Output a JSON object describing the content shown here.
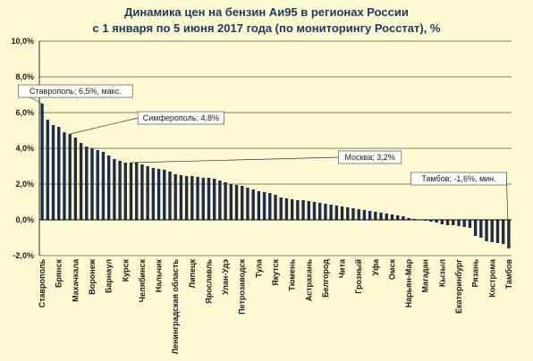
{
  "title_line1": "Динамика цен на бензин Аи95 в регионах России",
  "title_line2": "с 1 января по 5 июня 2017 года (по мониторингу Росстат), %",
  "chart_data": {
    "type": "bar",
    "title": "Динамика цен на бензин Аи95 в регионах России с 1 января по 5 июня 2017 года (по мониторингу Росстат), %",
    "xlabel": "",
    "ylabel": "",
    "ylim": [
      -2.0,
      10.0
    ],
    "yticks": [
      "-2,0%",
      "0,0%",
      "2,0%",
      "4,0%",
      "6,0%",
      "8,0%",
      "10,0%"
    ],
    "grid": true,
    "bar_color": "#1f2d4a",
    "labeled_categories": [
      {
        "label": "Ставрополь",
        "index": 0
      },
      {
        "label": "Брянск",
        "index": 3
      },
      {
        "label": "Махачкала",
        "index": 6
      },
      {
        "label": "Воронеж",
        "index": 9
      },
      {
        "label": "Барнаул",
        "index": 12
      },
      {
        "label": "Курск",
        "index": 15
      },
      {
        "label": "Челябинск",
        "index": 18
      },
      {
        "label": "Нальчик",
        "index": 21
      },
      {
        "label": "Ленинградская область",
        "index": 24
      },
      {
        "label": "Липецк",
        "index": 27
      },
      {
        "label": "Ярославль",
        "index": 30
      },
      {
        "label": "Улан-Удэ",
        "index": 33
      },
      {
        "label": "Петрозаводск",
        "index": 36
      },
      {
        "label": "Тула",
        "index": 39
      },
      {
        "label": "Якутск",
        "index": 42
      },
      {
        "label": "Тюмень",
        "index": 45
      },
      {
        "label": "Астрахань",
        "index": 48
      },
      {
        "label": "Белгород",
        "index": 51
      },
      {
        "label": "Чита",
        "index": 54
      },
      {
        "label": "Грозный",
        "index": 57
      },
      {
        "label": "Уфа",
        "index": 60
      },
      {
        "label": "Омск",
        "index": 63
      },
      {
        "label": "Нарьян-Мар",
        "index": 66
      },
      {
        "label": "Магадан",
        "index": 69
      },
      {
        "label": "Кызыл",
        "index": 72
      },
      {
        "label": "Екатеринбург",
        "index": 75
      },
      {
        "label": "Рязань",
        "index": 78
      },
      {
        "label": "Кострома",
        "index": 81
      },
      {
        "label": "Тамбов",
        "index": 84
      }
    ],
    "values": [
      6.5,
      5.6,
      5.3,
      5.2,
      4.9,
      4.8,
      4.6,
      4.3,
      4.1,
      4.0,
      3.9,
      3.8,
      3.6,
      3.4,
      3.3,
      3.2,
      3.2,
      3.2,
      3.1,
      3.0,
      2.9,
      2.85,
      2.8,
      2.7,
      2.55,
      2.5,
      2.45,
      2.45,
      2.4,
      2.35,
      2.35,
      2.3,
      2.2,
      2.1,
      2.0,
      1.95,
      1.9,
      1.8,
      1.7,
      1.6,
      1.55,
      1.5,
      1.4,
      1.25,
      1.2,
      1.15,
      1.1,
      1.1,
      1.05,
      1.0,
      0.95,
      0.9,
      0.85,
      0.8,
      0.75,
      0.7,
      0.65,
      0.6,
      0.55,
      0.5,
      0.45,
      0.4,
      0.35,
      0.3,
      0.25,
      0.2,
      0.1,
      0.05,
      0.02,
      -0.05,
      -0.1,
      -0.15,
      -0.25,
      -0.3,
      -0.3,
      -0.35,
      -0.4,
      -0.45,
      -0.9,
      -1.0,
      -1.2,
      -1.25,
      -1.3,
      -1.35,
      -1.6
    ],
    "annotations": [
      {
        "text": "Ставрополь; 6,5%, макс.",
        "index": 0,
        "value": 6.5,
        "box_value": 7.2,
        "box_index": 6
      },
      {
        "text": "Симферополь; 4,8%",
        "index": 5,
        "value": 4.8,
        "box_value": 5.7,
        "box_index": 25
      },
      {
        "text": "Москва; 3,2%",
        "index": 16,
        "value": 3.2,
        "box_value": 3.5,
        "box_index": 59
      },
      {
        "text": "Тамбов; -1,6%, мин.",
        "index": 84,
        "value": -1.6,
        "box_value": 2.3,
        "box_index": 75
      }
    ]
  }
}
